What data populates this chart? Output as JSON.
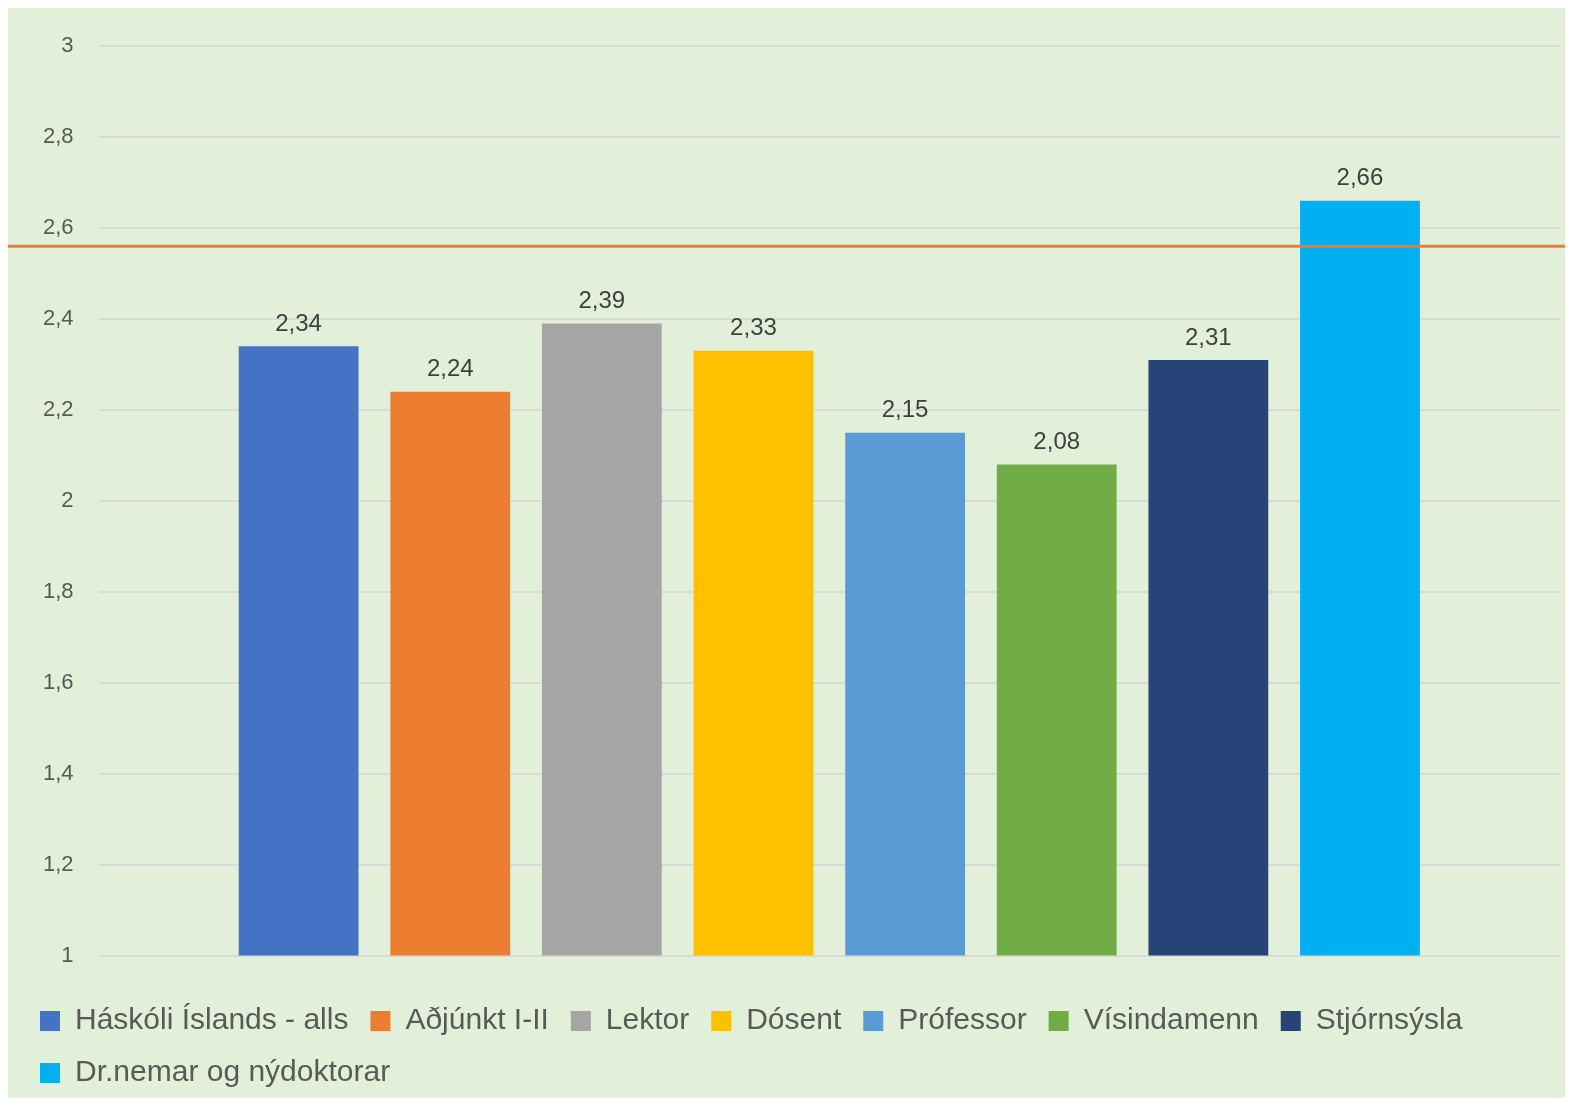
{
  "chart_data": {
    "type": "bar",
    "categories": [
      null
    ],
    "series": [
      {
        "name": "Háskóli Íslands - alls",
        "color": "#4472c4",
        "values": [
          2.34
        ],
        "value_labels": [
          "2,34"
        ]
      },
      {
        "name": "Aðjúnkt I-II",
        "color": "#ed7d31",
        "values": [
          2.24
        ],
        "value_labels": [
          "2,24"
        ]
      },
      {
        "name": "Lektor",
        "color": "#a5a5a5",
        "values": [
          2.39
        ],
        "value_labels": [
          "2,39"
        ]
      },
      {
        "name": "Dósent",
        "color": "#ffc000",
        "values": [
          2.33
        ],
        "value_labels": [
          "2,33"
        ]
      },
      {
        "name": "Prófessor",
        "color": "#5b9bd5",
        "values": [
          2.15
        ],
        "value_labels": [
          "2,15"
        ]
      },
      {
        "name": "Vísindamenn",
        "color": "#70ad47",
        "values": [
          2.08
        ],
        "value_labels": [
          "2,08"
        ]
      },
      {
        "name": "Stjórnsýsla",
        "color": "#264478",
        "values": [
          2.31
        ],
        "value_labels": [
          "2,31"
        ]
      },
      {
        "name": "Dr.nemar og nýdoktorar",
        "color": "#00b0f0",
        "values": [
          2.66
        ],
        "value_labels": [
          "2,66"
        ]
      }
    ],
    "ylim": [
      1,
      3
    ],
    "yticks": [
      1,
      {
        "value": 1.2,
        "label": "1,2"
      },
      {
        "value": 1.4,
        "label": "1,4"
      },
      {
        "value": 1.6,
        "label": "1,6"
      },
      {
        "value": 1.8,
        "label": "1,8"
      },
      2,
      {
        "value": 2.2,
        "label": "2,2"
      },
      {
        "value": 2.4,
        "label": "2,4"
      },
      {
        "value": 2.6,
        "label": "2,6"
      },
      {
        "value": 2.8,
        "label": "2,8"
      },
      3
    ],
    "ref_lines": [
      {
        "axis": "y",
        "value": 2.56,
        "color": "#ed7d31",
        "line_style": "solid"
      }
    ],
    "grid": "y",
    "legend": "bottom"
  }
}
